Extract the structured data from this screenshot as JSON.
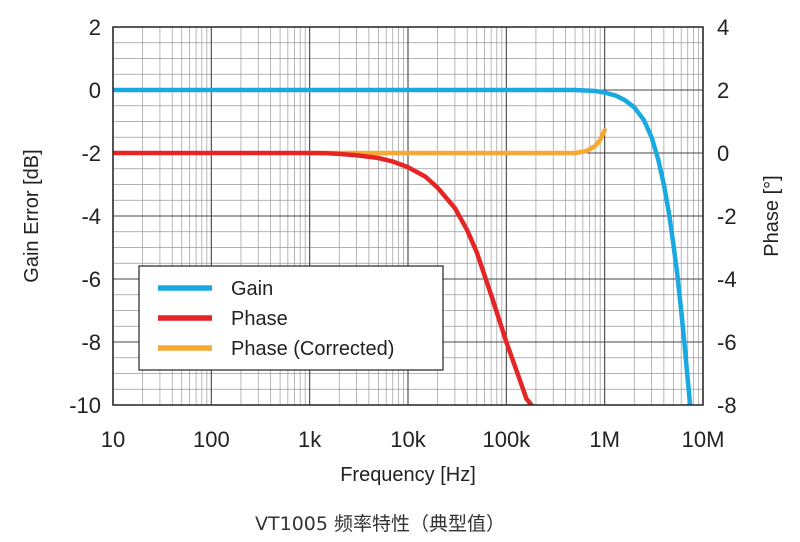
{
  "chart_data": {
    "type": "line",
    "xlabel": "Frequency [Hz]",
    "ylabel_left": "Gain Error [dB]",
    "ylabel_right": "Phase [°]",
    "x_scale": "log",
    "xlim": [
      10,
      10000000
    ],
    "ylim_left": [
      -10,
      2
    ],
    "ylim_right": [
      -8,
      4
    ],
    "grid": true,
    "legend_position": "lower-left",
    "x_ticks": [
      10,
      100,
      1000,
      10000,
      100000,
      1000000,
      10000000
    ],
    "x_tick_labels": [
      "10",
      "100",
      "1k",
      "10k",
      "100k",
      "1M",
      "10M"
    ],
    "y_left_ticks": [
      2,
      0,
      -2,
      -4,
      -6,
      -8,
      -10
    ],
    "y_left_tick_labels": [
      "2",
      "0",
      "-2",
      "-4",
      "-6",
      "-8",
      "-10"
    ],
    "y_right_ticks": [
      4,
      2,
      0,
      -2,
      -4,
      -6,
      -8
    ],
    "y_right_tick_labels": [
      "4",
      "2",
      "0",
      "-2",
      "-4",
      "-6",
      "-8"
    ],
    "series": [
      {
        "name": "Gain",
        "axis": "left",
        "color": "#1aa8e0",
        "points": [
          [
            10,
            0
          ],
          [
            100000,
            0
          ],
          [
            500000,
            0
          ],
          [
            800000,
            -0.03
          ],
          [
            1000000,
            -0.08
          ],
          [
            1300000,
            -0.18
          ],
          [
            1600000,
            -0.32
          ],
          [
            2000000,
            -0.55
          ],
          [
            2500000,
            -0.95
          ],
          [
            3000000,
            -1.5
          ],
          [
            3500000,
            -2.2
          ],
          [
            4000000,
            -3.0
          ],
          [
            4500000,
            -3.9
          ],
          [
            5000000,
            -4.9
          ],
          [
            5500000,
            -5.9
          ],
          [
            6000000,
            -7.0
          ],
          [
            6500000,
            -8.1
          ],
          [
            7000000,
            -9.2
          ],
          [
            7400000,
            -10
          ]
        ]
      },
      {
        "name": "Phase",
        "axis": "right",
        "color": "#e52525",
        "points": [
          [
            10,
            0
          ],
          [
            1000,
            0
          ],
          [
            1500,
            -0.01
          ],
          [
            2000,
            -0.03
          ],
          [
            3000,
            -0.07
          ],
          [
            5000,
            -0.16
          ],
          [
            7000,
            -0.27
          ],
          [
            10000,
            -0.45
          ],
          [
            15000,
            -0.75
          ],
          [
            20000,
            -1.1
          ],
          [
            30000,
            -1.75
          ],
          [
            40000,
            -2.45
          ],
          [
            50000,
            -3.15
          ],
          [
            70000,
            -4.5
          ],
          [
            100000,
            -6.0
          ],
          [
            130000,
            -7.0
          ],
          [
            160000,
            -7.8
          ],
          [
            180000,
            -8.0
          ]
        ]
      },
      {
        "name": "Phase (Corrected)",
        "axis": "right",
        "color": "#f7a832",
        "points": [
          [
            1000,
            0
          ],
          [
            100000,
            0
          ],
          [
            500000,
            0
          ],
          [
            650000,
            0.06
          ],
          [
            800000,
            0.22
          ],
          [
            900000,
            0.42
          ],
          [
            1000000,
            0.72
          ]
        ]
      }
    ]
  },
  "caption": "VT1005 频率特性（典型值）"
}
